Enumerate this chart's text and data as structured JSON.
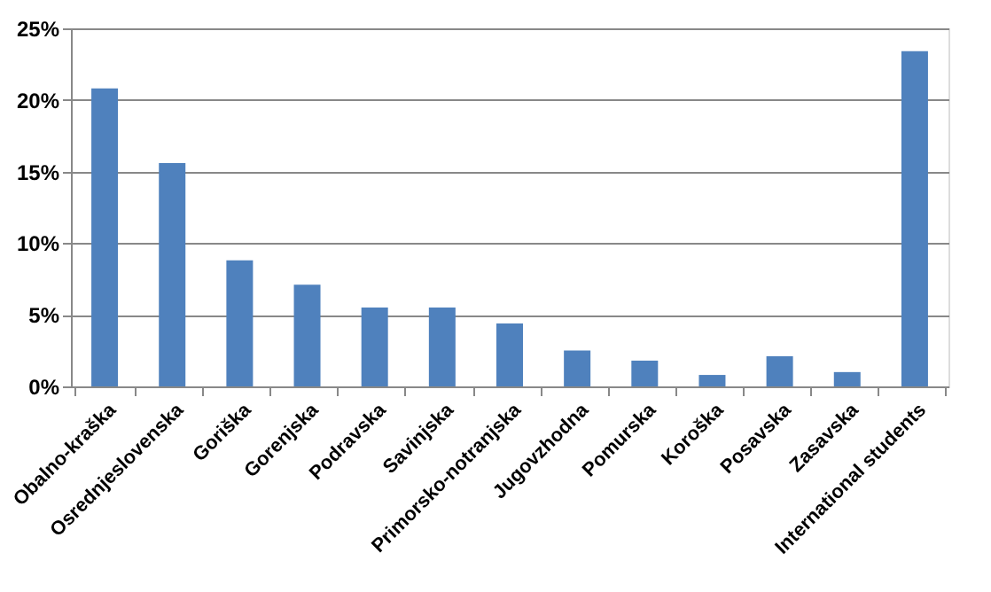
{
  "chart_data": {
    "type": "bar",
    "categories": [
      "Obalno-kraška",
      "Osrednjeslovenska",
      "Goriška",
      "Gorenjska",
      "Podravska",
      "Savinjska",
      "Primorsko-notranjska",
      "Jugovzhodna",
      "Pomurska",
      "Koroška",
      "Posavska",
      "Zasavska",
      "International students"
    ],
    "values": [
      20.8,
      15.6,
      8.8,
      7.1,
      5.5,
      5.5,
      4.4,
      2.5,
      1.8,
      0.8,
      2.1,
      1.0,
      23.4
    ],
    "color": "#4f81bd",
    "ylim": [
      0,
      25
    ],
    "yticks": [
      {
        "value": 0,
        "label": "0%"
      },
      {
        "value": 5,
        "label": "5%"
      },
      {
        "value": 10,
        "label": "10%"
      },
      {
        "value": 15,
        "label": "15%"
      },
      {
        "value": 20,
        "label": "20%"
      },
      {
        "value": 25,
        "label": "25%"
      }
    ],
    "grid": "y"
  }
}
